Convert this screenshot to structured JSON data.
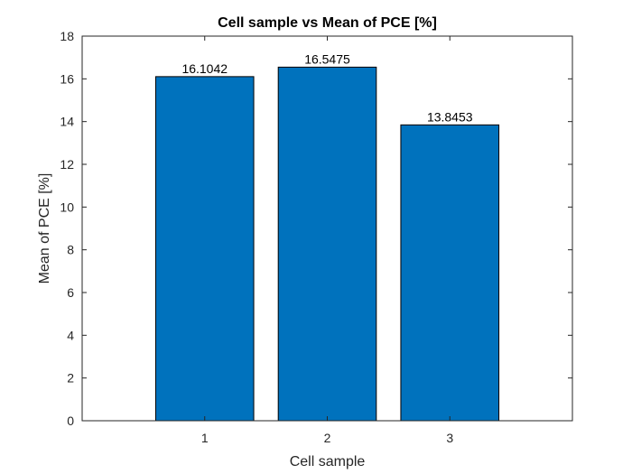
{
  "chart_data": {
    "type": "bar",
    "title": "Cell sample vs Mean of PCE [%]",
    "xlabel": "Cell sample",
    "ylabel": "Mean of PCE [%]",
    "categories": [
      "1",
      "2",
      "3"
    ],
    "values": [
      16.1042,
      16.5475,
      13.8453
    ],
    "data_labels": [
      "16.1042",
      "16.5475",
      "13.8453"
    ],
    "ylim": [
      0,
      18
    ],
    "yticks": [
      0,
      2,
      4,
      6,
      8,
      10,
      12,
      14,
      16,
      18
    ],
    "ytick_labels": [
      "0",
      "2",
      "4",
      "6",
      "8",
      "10",
      "12",
      "14",
      "16",
      "18"
    ],
    "xlim": [
      0,
      4
    ],
    "grid": false,
    "legend": "none",
    "colors": {
      "bar": "#0072BD",
      "bar_edge": "#000000",
      "axis": "#262626"
    }
  }
}
